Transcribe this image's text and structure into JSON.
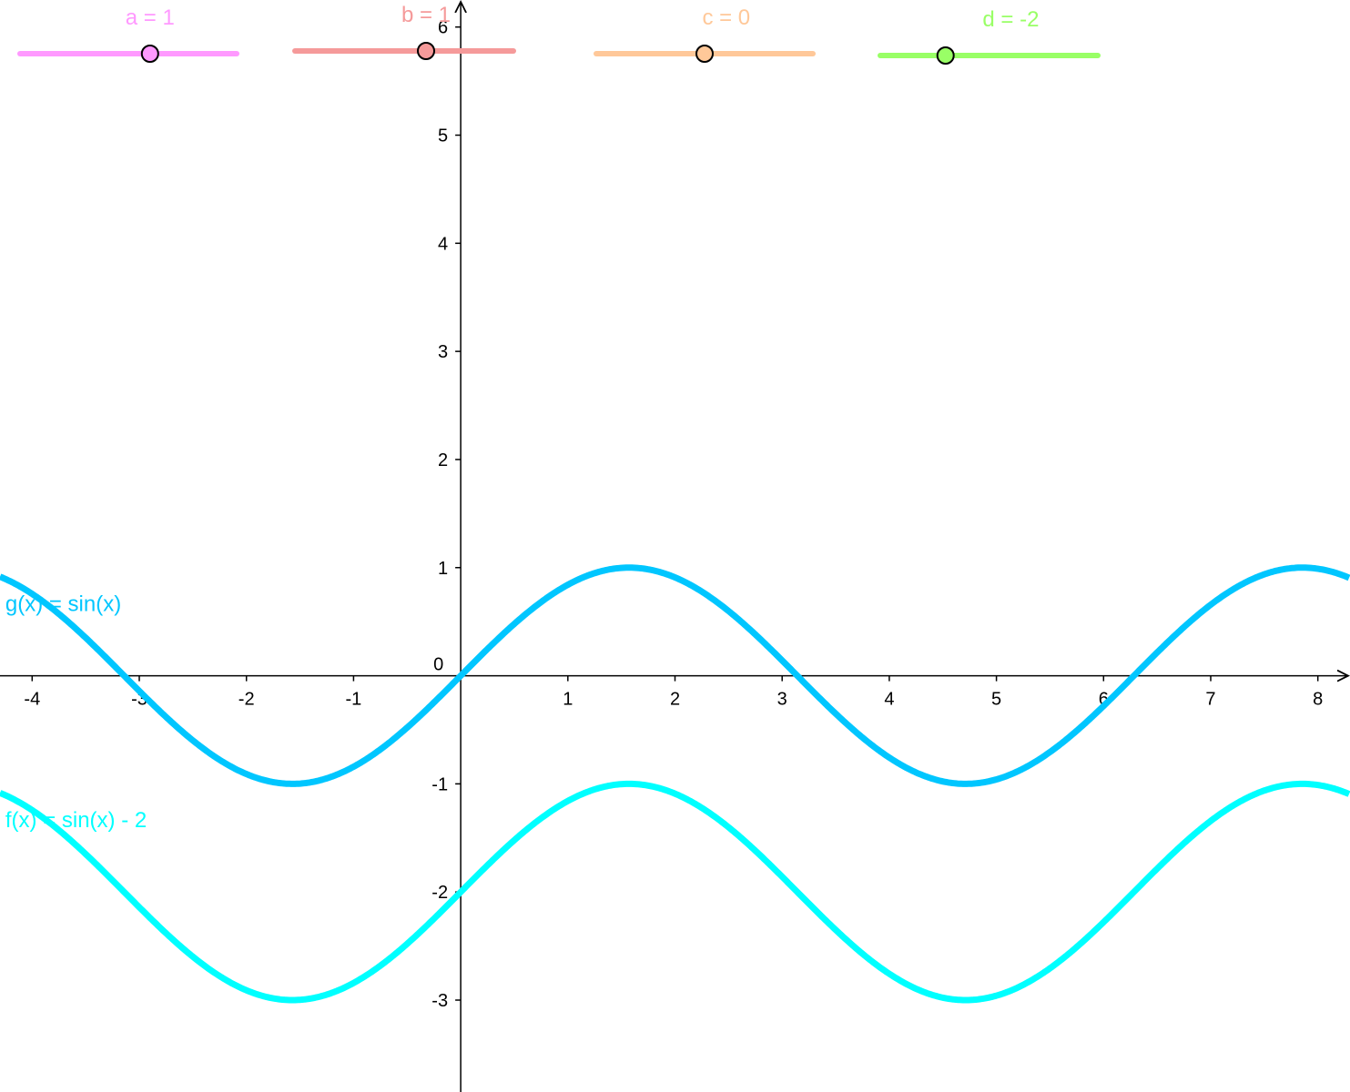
{
  "sliders": [
    {
      "name": "a",
      "label": "a = 1",
      "value": 1,
      "color": "#ff99ff",
      "position": 0.6
    },
    {
      "name": "b",
      "label": "b = 1",
      "value": 1,
      "color": "#f59a9a",
      "position": 0.6
    },
    {
      "name": "c",
      "label": "c = 0",
      "value": 0,
      "color": "#ffc899",
      "position": 0.5
    },
    {
      "name": "d",
      "label": "d = -2",
      "value": -2,
      "color": "#99ff66",
      "position": 0.3
    }
  ],
  "chart_data": {
    "type": "line",
    "title": "",
    "xlabel": "",
    "ylabel": "",
    "xlim": [
      -4.3,
      8.3
    ],
    "ylim": [
      -3.85,
      6.25
    ],
    "grid": false,
    "x_ticks": [
      "-4",
      "-3",
      "-2",
      "-1",
      "0",
      "1",
      "2",
      "3",
      "4",
      "5",
      "6",
      "7",
      "8"
    ],
    "y_ticks": [
      "-3",
      "-2",
      "-1",
      "1",
      "2",
      "3",
      "4",
      "5",
      "6"
    ],
    "origin_label": "0",
    "series": [
      {
        "name": "g(x) = sin(x)",
        "expression": "sin(x)",
        "color": "#00c6ff",
        "label_at": [
          -4.25,
          0.6
        ]
      },
      {
        "name": "f(x) = sin(x) - 2",
        "expression": "sin(x) - 2",
        "color": "#00ffff",
        "label_at": [
          -4.25,
          -1.4
        ]
      }
    ]
  }
}
